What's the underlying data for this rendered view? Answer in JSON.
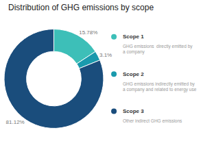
{
  "chart_data": {
    "type": "pie",
    "title": "Distribution of GHG emissions by scope",
    "categories": [
      "Scope 1",
      "Scope 2",
      "Scope 3"
    ],
    "values": [
      15.78,
      3.1,
      81.12
    ],
    "value_labels": [
      "15.78%",
      "3.1%",
      "81.12%"
    ],
    "colors": [
      "#3dbfb8",
      "#1a9aad",
      "#1a4d7c"
    ],
    "data_labels": true,
    "legend": "right",
    "annotations": [
      "GHG emissions  directly emitted by\na company",
      "GHG emissions indirectly emitted by\na company and related to energy use",
      "Other indirect GHG emissions"
    ]
  }
}
